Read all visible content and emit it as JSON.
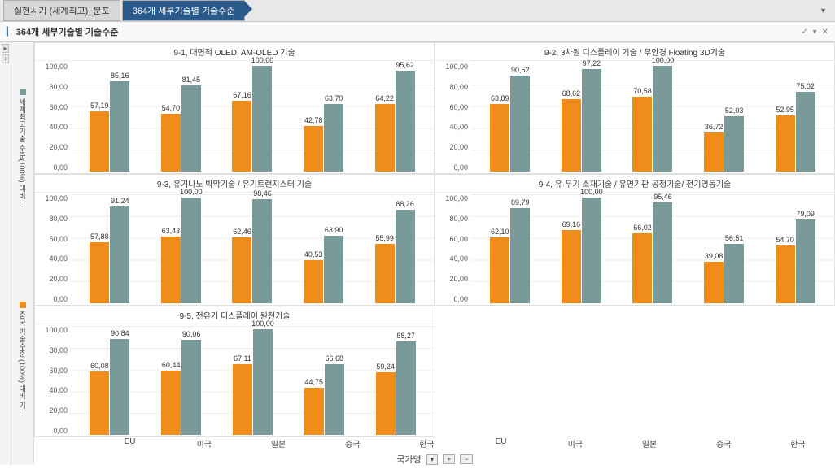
{
  "tabs": {
    "inactive": "실현시기 (세계최고)_분포",
    "active": "364개 세부기술별 기술수준"
  },
  "panel_title": "364개 세부기술별 기술수준",
  "legend": {
    "series1_label": "세계최고기술 수준(100%) 대비…",
    "series2_label": "중국 기술수준 (100%) 대비 기…"
  },
  "axis": {
    "x_label": "국가명",
    "categories": [
      "EU",
      "미국",
      "일본",
      "중국",
      "한국"
    ],
    "ylim": [
      0,
      100
    ],
    "ytick_step": 20,
    "yticks": [
      "0,00",
      "20,00",
      "40,00",
      "60,00",
      "80,00",
      "100,00"
    ]
  },
  "colors": {
    "series1": "#f08c1a",
    "series2": "#7a9a99",
    "grid": "#eeeeee",
    "bg": "#ffffff"
  },
  "charts": [
    {
      "title": "9-1, 대면적 OLED, AM-OLED 기술",
      "data": [
        {
          "s1": 57.19,
          "s2": 85.16,
          "l1": "57,19",
          "l2": "85,16"
        },
        {
          "s1": 54.7,
          "s2": 81.45,
          "l1": "54,70",
          "l2": "81,45"
        },
        {
          "s1": 67.16,
          "s2": 100.0,
          "l1": "67,16",
          "l2": "100,00"
        },
        {
          "s1": 42.78,
          "s2": 63.7,
          "l1": "42,78",
          "l2": "63,70"
        },
        {
          "s1": 64.22,
          "s2": 95.62,
          "l1": "64,22",
          "l2": "95,62"
        }
      ]
    },
    {
      "title": "9-2, 3차원 디스플레이 기술 / 무안경 Floating 3D기술",
      "data": [
        {
          "s1": 63.89,
          "s2": 90.52,
          "l1": "63,89",
          "l2": "90,52"
        },
        {
          "s1": 68.62,
          "s2": 97.22,
          "l1": "68,62",
          "l2": "97,22"
        },
        {
          "s1": 70.58,
          "s2": 100.0,
          "l1": "70,58",
          "l2": "100,00"
        },
        {
          "s1": 36.72,
          "s2": 52.03,
          "l1": "36,72",
          "l2": "52,03"
        },
        {
          "s1": 52.95,
          "s2": 75.02,
          "l1": "52,95",
          "l2": "75,02"
        }
      ]
    },
    {
      "title": "9-3, 유기나노 박막기술 / 유기트랜지스터 기술",
      "data": [
        {
          "s1": 57.88,
          "s2": 91.24,
          "l1": "57,88",
          "l2": "91,24"
        },
        {
          "s1": 63.43,
          "s2": 100.0,
          "l1": "63,43",
          "l2": "100,00"
        },
        {
          "s1": 62.46,
          "s2": 98.46,
          "l1": "62,46",
          "l2": "98,46"
        },
        {
          "s1": 40.53,
          "s2": 63.9,
          "l1": "40,53",
          "l2": "63,90"
        },
        {
          "s1": 55.99,
          "s2": 88.26,
          "l1": "55,99",
          "l2": "88,26"
        }
      ]
    },
    {
      "title": "9-4, 유·무기 소재기술 / 유연기판·공정기술/ 전기영동기술",
      "data": [
        {
          "s1": 62.1,
          "s2": 89.79,
          "l1": "62,10",
          "l2": "89,79"
        },
        {
          "s1": 69.16,
          "s2": 100.0,
          "l1": "69,16",
          "l2": "100,00"
        },
        {
          "s1": 66.02,
          "s2": 95.46,
          "l1": "66,02",
          "l2": "95,46"
        },
        {
          "s1": 39.08,
          "s2": 56.51,
          "l1": "39,08",
          "l2": "56,51"
        },
        {
          "s1": 54.7,
          "s2": 79.09,
          "l1": "54,70",
          "l2": "79,09"
        }
      ]
    },
    {
      "title": "9-5, 전유기 디스플레이 원천기술",
      "data": [
        {
          "s1": 60.08,
          "s2": 90.84,
          "l1": "60,08",
          "l2": "90,84"
        },
        {
          "s1": 60.44,
          "s2": 90.06,
          "l1": "60,44",
          "l2": "90,06"
        },
        {
          "s1": 67.11,
          "s2": 100.0,
          "l1": "67,11",
          "l2": "100,00"
        },
        {
          "s1": 44.75,
          "s2": 66.68,
          "l1": "44,75",
          "l2": "66,68"
        },
        {
          "s1": 59.24,
          "s2": 88.27,
          "l1": "59,24",
          "l2": "88,27"
        }
      ]
    }
  ]
}
